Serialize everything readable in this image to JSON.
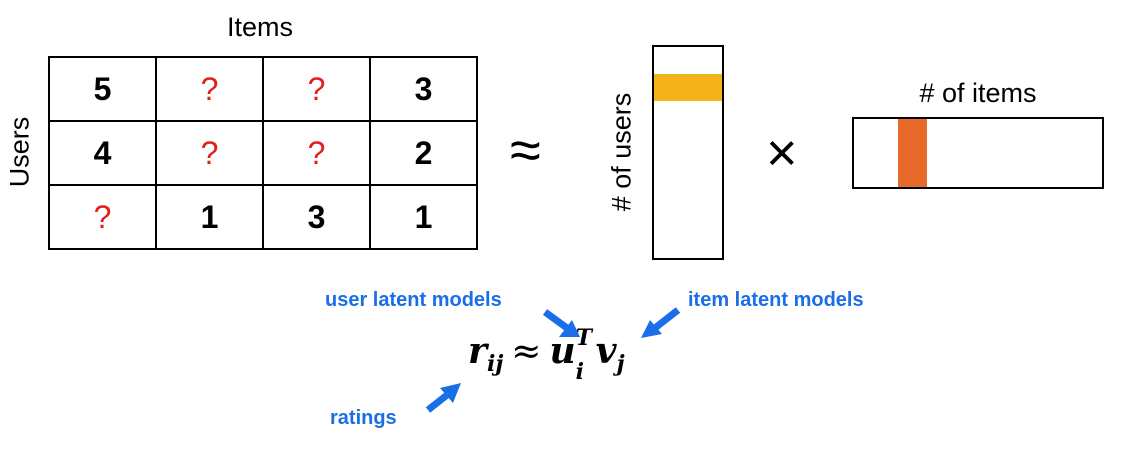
{
  "rating_matrix": {
    "axis_top_label": "Items",
    "axis_left_label": "Users",
    "rows": [
      [
        "5",
        "?",
        "?",
        "3"
      ],
      [
        "4",
        "?",
        "?",
        "2"
      ],
      [
        "?",
        "1",
        "3",
        "1"
      ]
    ]
  },
  "operators": {
    "approx": "≈",
    "times": "×"
  },
  "user_matrix": {
    "label": "# of users",
    "highlight_color": "#f5b31a"
  },
  "item_matrix": {
    "label": "# of items",
    "highlight_color": "#e86a2a"
  },
  "formula": {
    "lhs": "r",
    "lhs_sub": "ij",
    "approx": "≈",
    "u": "u",
    "u_sup": "T",
    "u_sub": "i",
    "v": "v",
    "v_sub": "j"
  },
  "annotations": {
    "user_latent": "user latent models",
    "item_latent": "item latent models",
    "ratings": "ratings",
    "color": "#1a6fe8"
  }
}
